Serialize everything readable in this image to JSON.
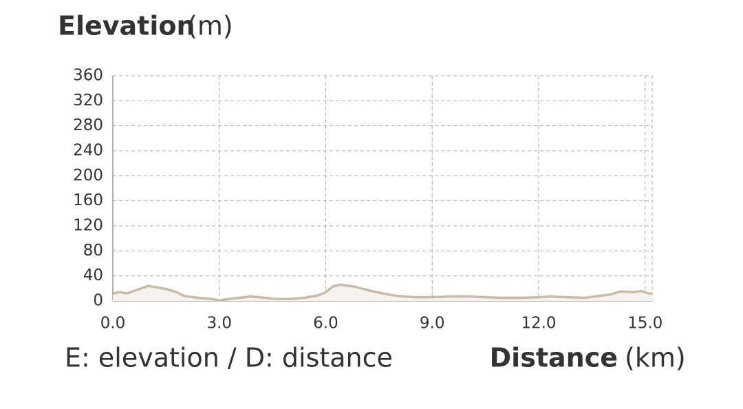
{
  "chart_data": {
    "type": "area",
    "title": "Elevation",
    "title_unit": "(m)",
    "x_label": "Distance",
    "x_label_unit": "(km)",
    "note": "E: elevation / D: distance",
    "x": [
      0,
      0.2,
      0.4,
      0.6,
      0.8,
      1.0,
      1.2,
      1.5,
      1.8,
      2.0,
      2.4,
      2.8,
      3.0,
      3.4,
      3.9,
      4.3,
      4.6,
      5.0,
      5.4,
      5.8,
      6.0,
      6.2,
      6.4,
      6.8,
      7.2,
      7.6,
      8.0,
      8.5,
      9.0,
      9.5,
      10.0,
      10.5,
      11.0,
      11.5,
      12.0,
      12.3,
      12.8,
      13.3,
      13.7,
      14.0,
      14.3,
      14.7,
      14.9,
      15.1,
      15.2
    ],
    "values": [
      12,
      14,
      12,
      16,
      20,
      24,
      22,
      19,
      14,
      8,
      5,
      3,
      1,
      4,
      7,
      5,
      3,
      3,
      5,
      9,
      14,
      23,
      26,
      23,
      17,
      12,
      8,
      6,
      6,
      7,
      7,
      6,
      5,
      5,
      6,
      7,
      6,
      5,
      8,
      10,
      15,
      14,
      16,
      12,
      12
    ],
    "line_color": "#c8bca6",
    "fill_color": "#f6f2ef",
    "xlim": [
      0,
      15.2
    ],
    "ylim": [
      0,
      360
    ],
    "xticks": [
      {
        "value": 0,
        "label": "0.0"
      },
      {
        "value": 3,
        "label": "3.0"
      },
      {
        "value": 6,
        "label": "6.0"
      },
      {
        "value": 9,
        "label": "9.0"
      },
      {
        "value": 12,
        "label": "12.0"
      },
      {
        "value": 15,
        "label": "15.0"
      }
    ],
    "yticks": [
      0,
      40,
      80,
      120,
      160,
      200,
      240,
      280,
      320,
      360
    ],
    "grid": true
  }
}
